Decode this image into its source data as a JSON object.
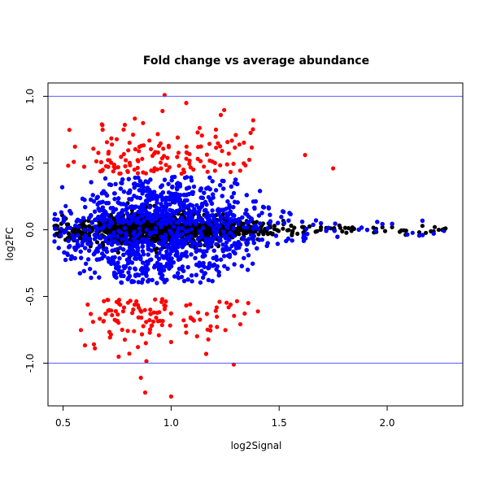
{
  "chart_data": {
    "type": "scatter",
    "title": "Fold change vs average abundance",
    "xlabel": "log2Signal",
    "ylabel": "log2FC",
    "xlim": [
      0.43,
      2.35
    ],
    "ylim": [
      -1.32,
      1.1
    ],
    "x_ticks": [
      0.5,
      1.0,
      1.5,
      2.0
    ],
    "x_tick_labels": [
      "0.5",
      "1.0",
      "1.5",
      "2.0"
    ],
    "y_ticks": [
      -1.0,
      -0.5,
      0.0,
      0.5,
      1.0
    ],
    "y_tick_labels": [
      "-1.0",
      "-0.5",
      "0.0",
      "0.5",
      "1.0"
    ],
    "reference_lines": [
      {
        "axis": "y",
        "value": 1.0,
        "color": "#5b5bff"
      },
      {
        "axis": "y",
        "value": -1.0,
        "color": "#5b5bff"
      }
    ],
    "series_colors": {
      "unchanged": "#000000",
      "changed": "#0000ff",
      "large_change": "#ff0000"
    },
    "approx_point_groups": [
      {
        "color": "#000000",
        "description_count": 1200
      },
      {
        "color": "#0000ff",
        "description_count": 3200
      },
      {
        "color": "#ff0000",
        "description_count": 260
      }
    ],
    "notable_points": [
      {
        "x": 0.97,
        "y": 1.01,
        "color": "#ff0000"
      },
      {
        "x": 1.07,
        "y": 0.95,
        "color": "#ff0000"
      },
      {
        "x": 1.23,
        "y": 0.86,
        "color": "#ff0000"
      },
      {
        "x": 0.96,
        "y": 0.89,
        "color": "#ff0000"
      },
      {
        "x": 1.38,
        "y": 0.82,
        "color": "#ff0000"
      },
      {
        "x": 0.78,
        "y": 0.75,
        "color": "#ff0000"
      },
      {
        "x": 1.62,
        "y": 0.56,
        "color": "#ff0000"
      },
      {
        "x": 1.75,
        "y": 0.46,
        "color": "#ff0000"
      },
      {
        "x": 1.0,
        "y": -1.25,
        "color": "#ff0000"
      },
      {
        "x": 0.88,
        "y": -1.22,
        "color": "#ff0000"
      },
      {
        "x": 0.86,
        "y": -1.11,
        "color": "#ff0000"
      },
      {
        "x": 1.29,
        "y": -1.01,
        "color": "#ff0000"
      },
      {
        "x": 2.27,
        "y": 0.01,
        "color": "#000000"
      },
      {
        "x": 2.22,
        "y": 0.02,
        "color": "#000000"
      },
      {
        "x": 0.47,
        "y": -0.03,
        "color": "#000000"
      }
    ]
  }
}
